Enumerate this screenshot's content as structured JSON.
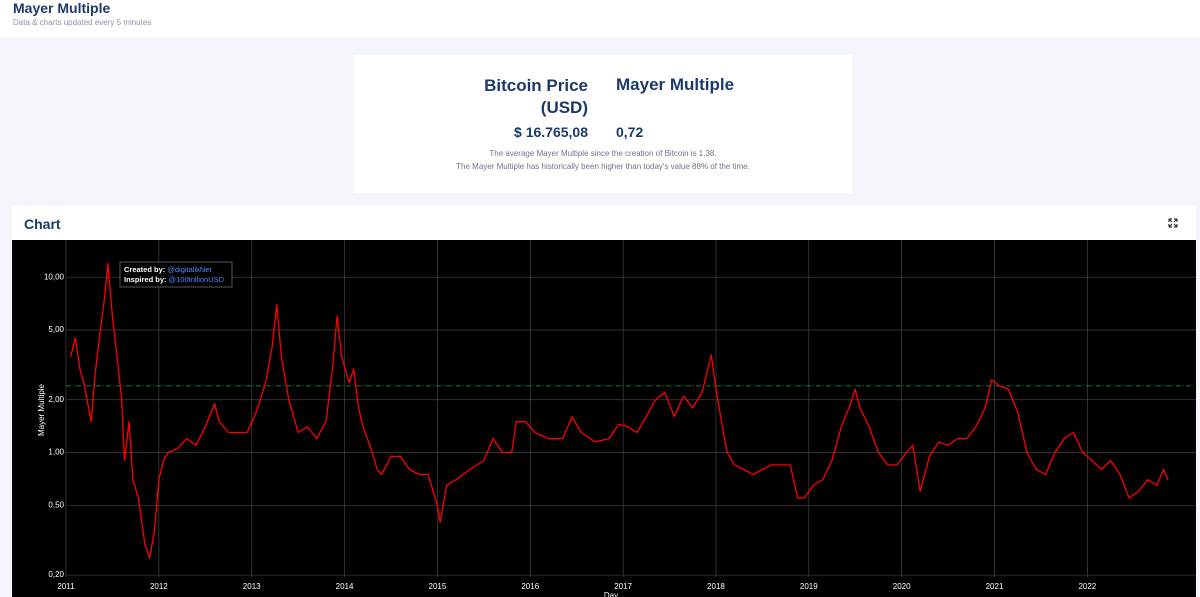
{
  "header": {
    "title": "Mayer Multiple",
    "subtitle": "Data & charts updated every 5 minutes"
  },
  "summary": {
    "price_label": "Bitcoin Price (USD)",
    "multiple_label": "Mayer Multiple",
    "price": "$ 16.765,08",
    "multiple": "0,72",
    "notes": [
      "The average Mayer Multiple since the creation of Bitcoin is 1,38.",
      "The Mayer Multiple has historically been higher than today's value 88% of the time."
    ]
  },
  "chart_panel": {
    "title": "Chart"
  },
  "chart_data": {
    "type": "line",
    "x_label": "Day",
    "y_label": "Mayer Multiple",
    "log_y": true,
    "grid": true,
    "credits": [
      {
        "label": "Created by:",
        "handle": "@digitalikNet"
      },
      {
        "label": "Inspired by:",
        "handle": "@100trillionUSD"
      }
    ],
    "reference_line": {
      "value": 2.4,
      "color": "#2e9e4a"
    },
    "xlim": [
      2011,
      2023.17
    ],
    "xticks": [
      2011,
      2012,
      2013,
      2014,
      2015,
      2016,
      2017,
      2018,
      2019,
      2020,
      2021,
      2022
    ],
    "ylim": [
      0.195,
      16.3
    ],
    "yticks": [
      {
        "value": 0.2,
        "label": "0,20"
      },
      {
        "value": 0.5,
        "label": "0,50"
      },
      {
        "value": 1,
        "label": "1,00"
      },
      {
        "value": 2,
        "label": "2,00"
      },
      {
        "value": 5,
        "label": "5,00"
      },
      {
        "value": 10,
        "label": "10,00"
      }
    ],
    "x": [
      2011.05,
      2011.1,
      2011.15,
      2011.2,
      2011.27,
      2011.32,
      2011.37,
      2011.42,
      2011.45,
      2011.5,
      2011.55,
      2011.6,
      2011.63,
      2011.68,
      2011.72,
      2011.78,
      2011.85,
      2011.9,
      2011.95,
      2012.0,
      2012.05,
      2012.1,
      2012.2,
      2012.3,
      2012.4,
      2012.5,
      2012.6,
      2012.65,
      2012.75,
      2012.85,
      2012.95,
      2013.05,
      2013.15,
      2013.22,
      2013.27,
      2013.32,
      2013.4,
      2013.5,
      2013.6,
      2013.7,
      2013.8,
      2013.87,
      2013.92,
      2013.97,
      2014.05,
      2014.1,
      2014.15,
      2014.2,
      2014.3,
      2014.35,
      2014.4,
      2014.5,
      2014.6,
      2014.7,
      2014.8,
      2014.9,
      2015.0,
      2015.03,
      2015.1,
      2015.2,
      2015.35,
      2015.5,
      2015.6,
      2015.7,
      2015.8,
      2015.85,
      2015.95,
      2016.05,
      2016.2,
      2016.35,
      2016.45,
      2016.55,
      2016.7,
      2016.85,
      2016.95,
      2017.05,
      2017.15,
      2017.25,
      2017.35,
      2017.45,
      2017.55,
      2017.65,
      2017.75,
      2017.85,
      2017.95,
      2018.0,
      2018.05,
      2018.12,
      2018.2,
      2018.3,
      2018.4,
      2018.5,
      2018.6,
      2018.7,
      2018.8,
      2018.88,
      2018.95,
      2019.05,
      2019.15,
      2019.25,
      2019.35,
      2019.45,
      2019.5,
      2019.55,
      2019.65,
      2019.75,
      2019.85,
      2019.95,
      2020.05,
      2020.12,
      2020.2,
      2020.3,
      2020.4,
      2020.5,
      2020.6,
      2020.7,
      2020.8,
      2020.9,
      2020.97,
      2021.05,
      2021.15,
      2021.25,
      2021.35,
      2021.45,
      2021.55,
      2021.65,
      2021.75,
      2021.85,
      2021.95,
      2022.05,
      2022.15,
      2022.25,
      2022.35,
      2022.45,
      2022.55,
      2022.65,
      2022.75,
      2022.82,
      2022.87
    ],
    "series": [
      {
        "name": "Mayer Multiple",
        "color": "#ff0000",
        "values": [
          3.5,
          4.5,
          3.0,
          2.4,
          1.5,
          3.0,
          5,
          8,
          12,
          6,
          3.5,
          2.0,
          0.9,
          1.5,
          0.7,
          0.55,
          0.3,
          0.25,
          0.35,
          0.7,
          0.9,
          1.0,
          1.05,
          1.2,
          1.1,
          1.4,
          1.9,
          1.5,
          1.3,
          1.3,
          1.3,
          1.7,
          2.5,
          4.0,
          7.0,
          3.5,
          2.0,
          1.3,
          1.4,
          1.2,
          1.5,
          3.0,
          6.0,
          3.5,
          2.5,
          3.0,
          1.8,
          1.4,
          1.0,
          0.8,
          0.75,
          0.95,
          0.95,
          0.8,
          0.75,
          0.75,
          0.5,
          0.4,
          0.65,
          0.7,
          0.8,
          0.9,
          1.2,
          1.0,
          1.0,
          1.5,
          1.5,
          1.3,
          1.2,
          1.2,
          1.6,
          1.3,
          1.15,
          1.2,
          1.45,
          1.4,
          1.3,
          1.6,
          2.0,
          2.2,
          1.6,
          2.1,
          1.8,
          2.2,
          3.6,
          2.3,
          1.6,
          1.0,
          0.85,
          0.8,
          0.75,
          0.8,
          0.85,
          0.85,
          0.85,
          0.55,
          0.55,
          0.65,
          0.7,
          0.9,
          1.4,
          1.9,
          2.3,
          1.8,
          1.4,
          1.0,
          0.85,
          0.85,
          1.0,
          1.1,
          0.6,
          0.95,
          1.15,
          1.1,
          1.2,
          1.2,
          1.4,
          1.8,
          2.6,
          2.4,
          2.3,
          1.7,
          1.0,
          0.8,
          0.75,
          1.0,
          1.2,
          1.3,
          1.0,
          0.9,
          0.8,
          0.9,
          0.75,
          0.55,
          0.6,
          0.7,
          0.65,
          0.8,
          0.7
        ]
      }
    ]
  }
}
